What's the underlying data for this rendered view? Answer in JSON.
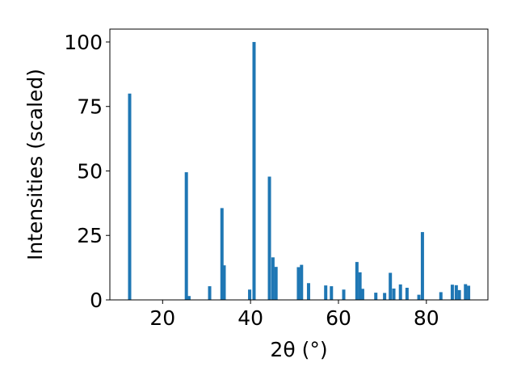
{
  "chart_data": {
    "type": "bar",
    "xlabel": "2θ (°)",
    "ylabel": "Intensities (scaled)",
    "xlim": [
      8,
      94
    ],
    "ylim": [
      0,
      105
    ],
    "xticks": [
      20,
      40,
      60,
      80
    ],
    "yticks": [
      0,
      25,
      50,
      75,
      100
    ],
    "grid": false,
    "bar_color": "#1f77b4",
    "x": [
      12.5,
      25.4,
      26.0,
      30.7,
      33.5,
      34.0,
      39.8,
      40.8,
      44.3,
      45.1,
      45.8,
      50.9,
      51.6,
      53.2,
      57.1,
      58.4,
      61.2,
      64.2,
      64.9,
      65.5,
      68.5,
      70.5,
      71.8,
      72.6,
      74.1,
      75.6,
      78.3,
      79.1,
      83.3,
      85.9,
      86.8,
      87.5,
      88.9,
      89.6
    ],
    "values": [
      80,
      49.5,
      1.5,
      5.3,
      35.6,
      13.4,
      4.0,
      100,
      47.8,
      16.5,
      12.8,
      12.7,
      13.6,
      6.5,
      5.6,
      5.3,
      4.0,
      14.7,
      10.7,
      4.3,
      2.8,
      2.7,
      10.5,
      4.4,
      6.0,
      4.7,
      2.0,
      26.3,
      3.0,
      5.9,
      5.7,
      3.8,
      6.1,
      5.5
    ]
  }
}
